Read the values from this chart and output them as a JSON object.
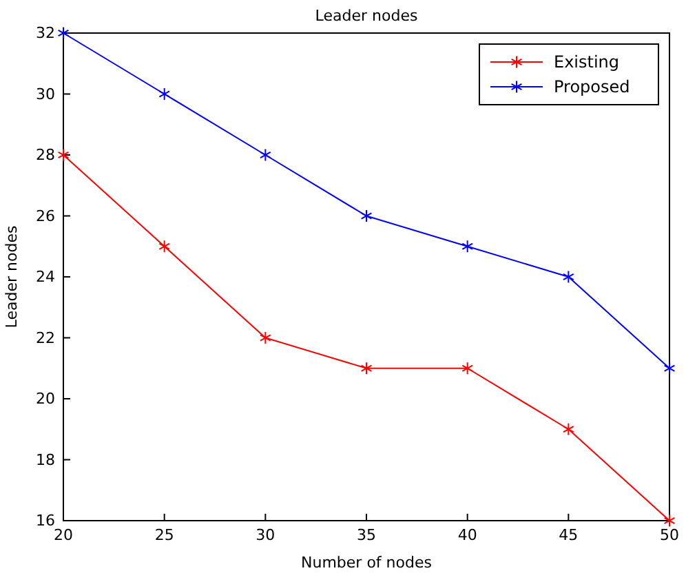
{
  "chart_data": {
    "type": "line",
    "title": "Leader nodes",
    "xlabel": "Number of nodes",
    "ylabel": "Leader nodes",
    "x": [
      20,
      25,
      30,
      35,
      40,
      45,
      50
    ],
    "series": [
      {
        "name": "Existing",
        "color": "#ff0000",
        "values": [
          28,
          25,
          22,
          21,
          21,
          19,
          16
        ]
      },
      {
        "name": "Proposed",
        "color": "#0000ff",
        "values": [
          32,
          30,
          28,
          26,
          25,
          24,
          21
        ]
      }
    ],
    "xlim": [
      20,
      50
    ],
    "xticks": [
      20,
      25,
      30,
      35,
      40,
      45,
      50
    ],
    "ylim": [
      16,
      32
    ],
    "yticks": [
      16,
      18,
      20,
      22,
      24,
      26,
      28,
      30,
      32
    ],
    "grid": false,
    "legend": "top right",
    "marker": "cross",
    "line_style": "solid"
  }
}
